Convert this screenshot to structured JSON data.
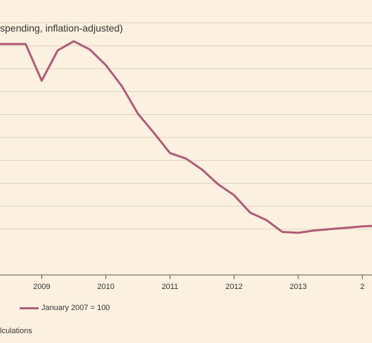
{
  "chart_data": {
    "type": "line",
    "subtitle": "spending, inflation-adjusted)",
    "x_tick_labels": [
      "2009",
      "2010",
      "2011",
      "2012",
      "2013",
      "2"
    ],
    "series": [
      {
        "name": "January 2007 = 100",
        "color": "#b05b77",
        "points": [
          {
            "x": 2008.35,
            "y": 105.2
          },
          {
            "x": 2008.75,
            "y": 105.2
          },
          {
            "x": 2009.0,
            "y": 101.2
          },
          {
            "x": 2009.25,
            "y": 104.5
          },
          {
            "x": 2009.5,
            "y": 105.5
          },
          {
            "x": 2009.75,
            "y": 104.6
          },
          {
            "x": 2010.0,
            "y": 102.9
          },
          {
            "x": 2010.25,
            "y": 100.6
          },
          {
            "x": 2010.5,
            "y": 97.6
          },
          {
            "x": 2010.75,
            "y": 95.5
          },
          {
            "x": 2011.0,
            "y": 93.3
          },
          {
            "x": 2011.25,
            "y": 92.7
          },
          {
            "x": 2011.5,
            "y": 91.5
          },
          {
            "x": 2011.75,
            "y": 89.9
          },
          {
            "x": 2012.0,
            "y": 88.7
          },
          {
            "x": 2012.25,
            "y": 86.8
          },
          {
            "x": 2012.5,
            "y": 86.0
          },
          {
            "x": 2012.75,
            "y": 84.7
          },
          {
            "x": 2013.0,
            "y": 84.6
          },
          {
            "x": 2013.25,
            "y": 84.85
          },
          {
            "x": 2013.5,
            "y": 85.0
          },
          {
            "x": 2013.75,
            "y": 85.15
          },
          {
            "x": 2014.0,
            "y": 85.3
          },
          {
            "x": 2014.15,
            "y": 85.35
          }
        ]
      }
    ],
    "x_range": [
      2008.35,
      2014.15
    ],
    "y_range": [
      80,
      110
    ],
    "y_gridlines": [
      85,
      87.5,
      90,
      92.5,
      95,
      97.5,
      100,
      102.5,
      105,
      107.5
    ],
    "grid": true,
    "legend_position": "bottom-left"
  },
  "source_text": "lculations",
  "colors": {
    "background": "#fcf1e0",
    "series": "#b05b77",
    "grid": "#dcd2c3",
    "axis": "#555555"
  }
}
